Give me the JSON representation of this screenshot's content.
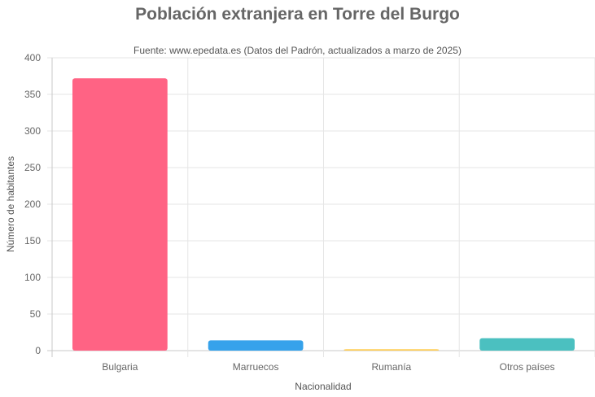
{
  "chart_data": {
    "type": "bar",
    "title": "Población extranjera en Torre del Burgo",
    "subtitle": "Fuente: www.epedata.es (Datos del Padrón, actualizados a marzo de 2025)",
    "xlabel": "Nacionalidad",
    "ylabel": "Número de habitantes",
    "categories": [
      "Bulgaria",
      "Marruecos",
      "Rumanía",
      "Otros países"
    ],
    "values": [
      372,
      14,
      2,
      17
    ],
    "colors": [
      "#ff6384",
      "#36a2eb",
      "#ffcd56",
      "#4bc0c0"
    ],
    "ylim": [
      0,
      400
    ],
    "yticks": [
      0,
      50,
      100,
      150,
      200,
      250,
      300,
      350,
      400
    ],
    "grid": true,
    "legend": "none"
  }
}
